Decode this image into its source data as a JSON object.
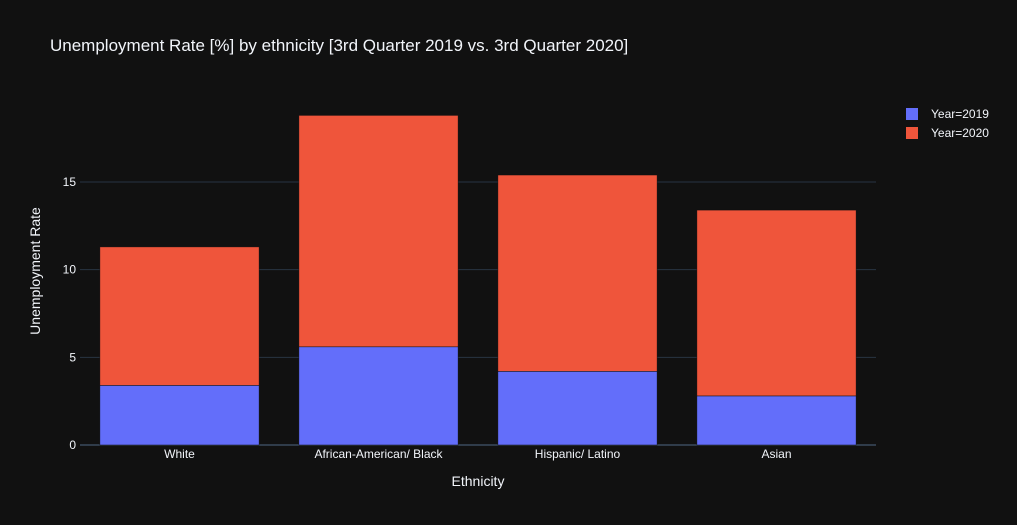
{
  "chart_data": {
    "type": "bar",
    "barmode": "stack",
    "title": "Unemployment Rate [%] by ethnicity [3rd Quarter 2019 vs. 3rd Quarter 2020]",
    "xlabel": "Ethnicity",
    "ylabel": "Unemployment Rate",
    "categories": [
      "White",
      "African-American/ Black",
      "Hispanic/ Latino",
      "Asian"
    ],
    "series": [
      {
        "name": "Year=2019",
        "color": "#636efa",
        "values": [
          3.4,
          5.6,
          4.2,
          2.8
        ]
      },
      {
        "name": "Year=2020",
        "color": "#ef553b",
        "values": [
          7.9,
          13.2,
          11.2,
          10.6
        ]
      }
    ],
    "ylim": [
      0,
      19.85
    ],
    "yticks": [
      0,
      5,
      10,
      15
    ],
    "grid": true,
    "legend_position": "top-right",
    "background": "#111111"
  }
}
